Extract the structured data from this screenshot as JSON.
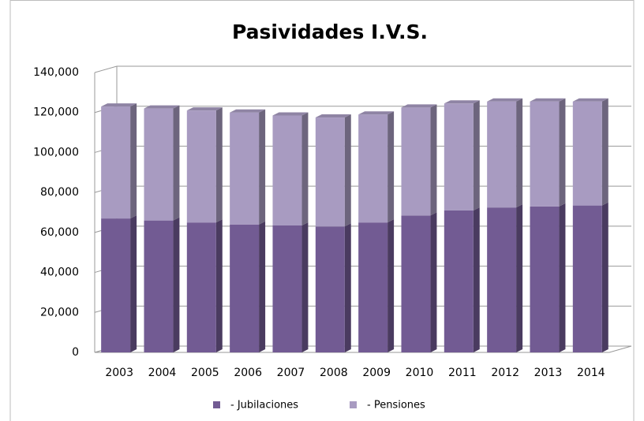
{
  "chart_data": {
    "type": "stacked_bar_3d",
    "title": "Pasividades I.V.S.",
    "categories": [
      "2003",
      "2004",
      "2005",
      "2006",
      "2007",
      "2008",
      "2009",
      "2010",
      "2011",
      "2012",
      "2013",
      "2014"
    ],
    "series": [
      {
        "name": "- Jubilaciones",
        "color": "#725b93",
        "values": [
          67000,
          66000,
          65000,
          64000,
          63500,
          63000,
          65000,
          68500,
          71000,
          72500,
          73000,
          73500
        ]
      },
      {
        "name": "- Pensiones",
        "color": "#a89bc1",
        "values": [
          56000,
          56000,
          56000,
          56000,
          55000,
          54500,
          54000,
          54000,
          53500,
          53000,
          52500,
          52000
        ]
      }
    ],
    "ylim": [
      0,
      140000
    ],
    "yticks": [
      0,
      {
        "value": 20000,
        "label": "20,000"
      },
      {
        "value": 40000,
        "label": "40,000"
      },
      {
        "value": 60000,
        "label": "60,000"
      },
      {
        "value": 80000,
        "label": "80,000"
      },
      {
        "value": 100000,
        "label": "100,000"
      },
      {
        "value": 120000,
        "label": "120,000"
      },
      {
        "value": 140000,
        "label": "140,000"
      }
    ],
    "grid": true,
    "legend": "bottom"
  }
}
